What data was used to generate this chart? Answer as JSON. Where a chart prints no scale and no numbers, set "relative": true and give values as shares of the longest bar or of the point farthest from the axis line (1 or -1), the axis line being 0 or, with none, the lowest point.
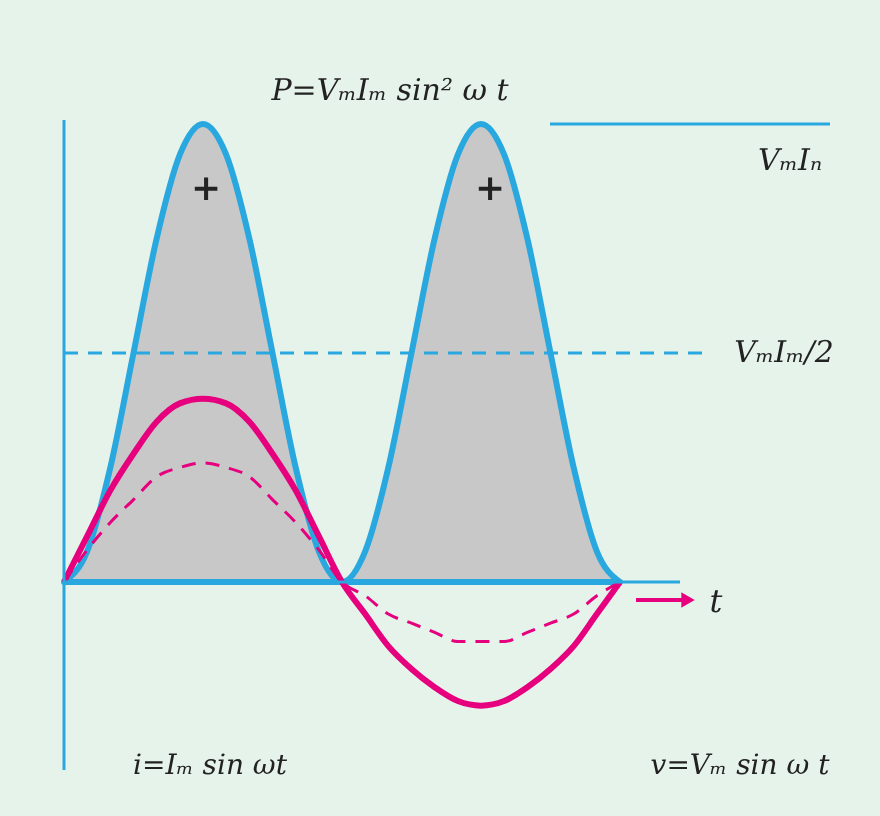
{
  "chart_data": {
    "type": "line",
    "relative": true,
    "xlabel": "t",
    "categories": [
      null,
      null,
      null,
      null,
      null,
      null,
      null,
      null,
      null,
      null,
      null,
      null,
      null,
      null,
      null,
      null,
      null,
      null,
      null,
      null,
      null,
      null,
      null,
      null,
      null
    ],
    "series": [
      {
        "type": "area",
        "color": "#29a8e0",
        "values": [
          0,
          0.067,
          0.25,
          0.5,
          0.75,
          0.933,
          1,
          0.933,
          0.75,
          0.5,
          0.25,
          0.067,
          0,
          0.067,
          0.25,
          0.5,
          0.75,
          0.933,
          1,
          0.933,
          0.75,
          0.5,
          0.25,
          0.067,
          0
        ]
      },
      {
        "color": "#e6007e",
        "line_style": "solid",
        "values": [
          0,
          0.1,
          0.2,
          0.28,
          0.35,
          0.39,
          0.4,
          0.39,
          0.35,
          0.28,
          0.2,
          0.1,
          0,
          -0.07,
          -0.14,
          -0.19,
          -0.23,
          -0.26,
          -0.27,
          -0.26,
          -0.23,
          -0.19,
          -0.14,
          -0.07,
          0
        ]
      },
      {
        "color": "#e6007e",
        "line_style": "dashed",
        "values": [
          0,
          0.07,
          0.13,
          0.18,
          0.23,
          0.25,
          0.26,
          0.25,
          0.23,
          0.18,
          0.13,
          0.07,
          0,
          -0.03,
          -0.07,
          -0.09,
          -0.11,
          -0.13,
          -0.13,
          -0.13,
          -0.11,
          -0.09,
          -0.07,
          -0.03,
          0
        ]
      }
    ],
    "ref_lines": [
      {
        "axis": "y",
        "value": 0,
        "color": "#29a8e0",
        "line_style": "solid"
      },
      {
        "axis": "y",
        "value": 1,
        "label": "VₘIₙ",
        "color": "#29a8e0",
        "line_style": "solid"
      },
      {
        "axis": "y",
        "value": 0.5,
        "label": "VₘIₘ/2",
        "color": "#29a8e0",
        "line_style": "dashed"
      }
    ],
    "annotations": [
      "P=VₘIₘ sin² ω t",
      "+",
      "+",
      "i=Iₘ sin ωt",
      "v=Vₘ sin ω t"
    ]
  }
}
